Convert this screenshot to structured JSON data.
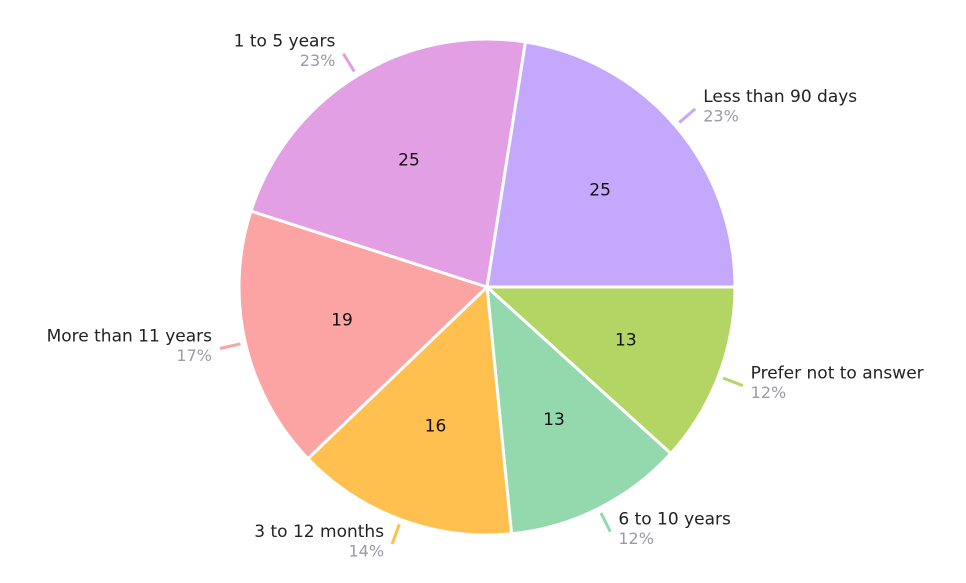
{
  "chart_data": {
    "type": "pie",
    "categories": [
      "Prefer not to answer",
      "6 to 10 years",
      "3 to 12 months",
      "More than 11 years",
      "1 to 5 years",
      "Less than 90 days"
    ],
    "values": [
      13,
      13,
      16,
      19,
      25,
      25
    ],
    "percent_labels": [
      "12%",
      "12%",
      "14%",
      "17%",
      "23%",
      "23%"
    ],
    "colors": [
      "#b2d563",
      "#93d9ad",
      "#ffc050",
      "#fca3a3",
      "#e29fe4",
      "#c4a8fc"
    ]
  }
}
